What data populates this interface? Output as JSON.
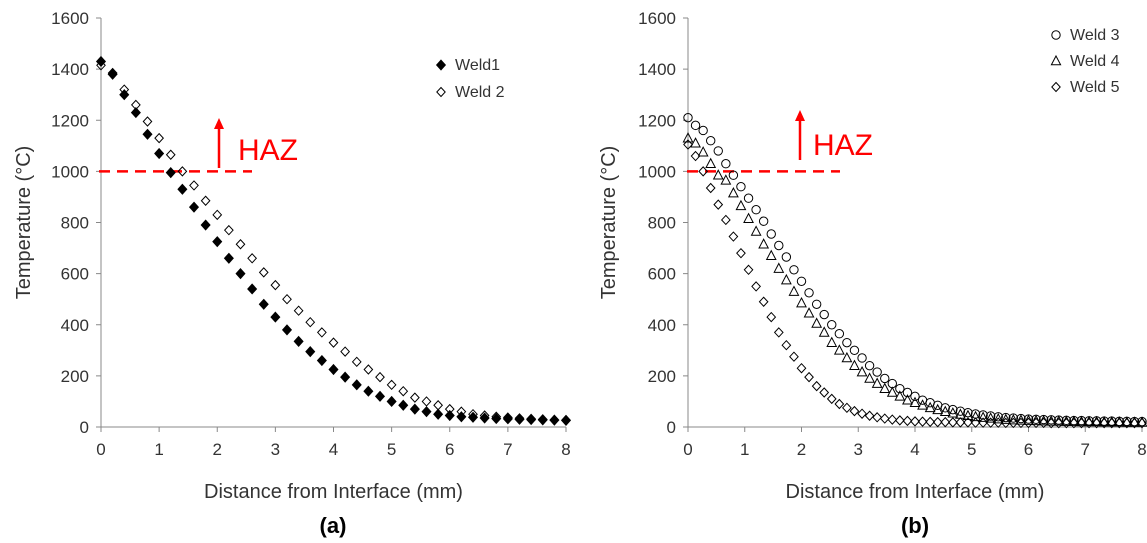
{
  "chart_data": [
    {
      "type": "scatter",
      "panel_label": "(a)",
      "xlabel": "Distance from Interface (mm)",
      "ylabel": "Temperature (°C)",
      "xlim": [
        0,
        8
      ],
      "ylim": [
        0,
        1600
      ],
      "xticks": [
        "0",
        "1",
        "2",
        "3",
        "4",
        "5",
        "6",
        "7",
        "8"
      ],
      "yticks": [
        "0",
        "200",
        "400",
        "600",
        "800",
        "1000",
        "1200",
        "1400",
        "1600"
      ],
      "grid": false,
      "legend_position": "top-right",
      "series": [
        {
          "name": "Weld1",
          "marker": "diamond-filled",
          "x": [
            0,
            0.2,
            0.4,
            0.6,
            0.8,
            1.0,
            1.2,
            1.4,
            1.6,
            1.8,
            2.0,
            2.2,
            2.4,
            2.6,
            2.8,
            3.0,
            3.2,
            3.4,
            3.6,
            3.8,
            4.0,
            4.2,
            4.4,
            4.6,
            4.8,
            5.0,
            5.2,
            5.4,
            5.6,
            5.8,
            6.0,
            6.2,
            6.4,
            6.6,
            6.8,
            7.0,
            7.2,
            7.4,
            7.6,
            7.8,
            8.0
          ],
          "y": [
            1430,
            1380,
            1300,
            1230,
            1145,
            1070,
            995,
            930,
            860,
            790,
            725,
            660,
            600,
            540,
            480,
            430,
            380,
            335,
            295,
            260,
            225,
            195,
            165,
            140,
            120,
            100,
            85,
            70,
            60,
            50,
            45,
            40,
            38,
            35,
            33,
            32,
            30,
            29,
            28,
            27,
            26
          ]
        },
        {
          "name": "Weld 2",
          "marker": "diamond-open",
          "x": [
            0,
            0.2,
            0.4,
            0.6,
            0.8,
            1.0,
            1.2,
            1.4,
            1.6,
            1.8,
            2.0,
            2.2,
            2.4,
            2.6,
            2.8,
            3.0,
            3.2,
            3.4,
            3.6,
            3.8,
            4.0,
            4.2,
            4.4,
            4.6,
            4.8,
            5.0,
            5.2,
            5.4,
            5.6,
            5.8,
            6.0,
            6.2,
            6.4,
            6.6,
            6.8,
            7.0,
            7.2,
            7.4,
            7.6,
            7.8,
            8.0
          ],
          "y": [
            1415,
            1385,
            1320,
            1260,
            1195,
            1130,
            1065,
            1000,
            945,
            885,
            830,
            770,
            715,
            660,
            605,
            555,
            500,
            455,
            410,
            370,
            330,
            295,
            255,
            225,
            195,
            165,
            140,
            115,
            100,
            85,
            70,
            60,
            50,
            45,
            40,
            37,
            34,
            32,
            30,
            28,
            27
          ]
        }
      ],
      "annotation": {
        "text": "HAZ",
        "threshold": 1000,
        "color": "#ff0000"
      }
    },
    {
      "type": "scatter",
      "panel_label": "(b)",
      "xlabel": "Distance from Interface (mm)",
      "ylabel": "Temperature (°C)",
      "xlim": [
        0,
        8
      ],
      "ylim": [
        0,
        1600
      ],
      "xticks": [
        "0",
        "1",
        "2",
        "3",
        "4",
        "5",
        "6",
        "7",
        "8"
      ],
      "yticks": [
        "0",
        "200",
        "400",
        "600",
        "800",
        "1000",
        "1200",
        "1400",
        "1600"
      ],
      "grid": false,
      "legend_position": "top-right",
      "series": [
        {
          "name": "Weld 3",
          "marker": "circle-open",
          "x": [
            0,
            0.133,
            0.267,
            0.4,
            0.533,
            0.667,
            0.8,
            0.933,
            1.067,
            1.2,
            1.333,
            1.467,
            1.6,
            1.733,
            1.867,
            2.0,
            2.133,
            2.267,
            2.4,
            2.533,
            2.667,
            2.8,
            2.933,
            3.067,
            3.2,
            3.333,
            3.467,
            3.6,
            3.733,
            3.867,
            4.0,
            4.133,
            4.267,
            4.4,
            4.533,
            4.667,
            4.8,
            4.933,
            5.067,
            5.2,
            5.333,
            5.467,
            5.6,
            5.733,
            5.867,
            6.0,
            6.133,
            6.267,
            6.4,
            6.533,
            6.667,
            6.8,
            6.933,
            7.067,
            7.2,
            7.333,
            7.467,
            7.6,
            7.733,
            7.867,
            8.0
          ],
          "y": [
            1210,
            1180,
            1160,
            1120,
            1080,
            1030,
            985,
            940,
            895,
            850,
            805,
            755,
            710,
            665,
            615,
            570,
            525,
            480,
            440,
            400,
            365,
            330,
            300,
            270,
            240,
            215,
            190,
            170,
            150,
            135,
            120,
            105,
            95,
            85,
            75,
            68,
            62,
            56,
            51,
            47,
            43,
            40,
            37,
            35,
            33,
            31,
            30,
            29,
            28,
            27,
            26,
            25,
            25,
            24,
            24,
            23,
            23,
            22,
            22,
            21,
            21
          ]
        },
        {
          "name": "Weld 4",
          "marker": "triangle-open",
          "x": [
            0,
            0.133,
            0.267,
            0.4,
            0.533,
            0.667,
            0.8,
            0.933,
            1.067,
            1.2,
            1.333,
            1.467,
            1.6,
            1.733,
            1.867,
            2.0,
            2.133,
            2.267,
            2.4,
            2.533,
            2.667,
            2.8,
            2.933,
            3.067,
            3.2,
            3.333,
            3.467,
            3.6,
            3.733,
            3.867,
            4.0,
            4.133,
            4.267,
            4.4,
            4.533,
            4.667,
            4.8,
            4.933,
            5.067,
            5.2,
            5.333,
            5.467,
            5.6,
            5.733,
            5.867,
            6.0,
            6.133,
            6.267,
            6.4,
            6.533,
            6.667,
            6.8,
            6.933,
            7.067,
            7.2,
            7.333,
            7.467,
            7.6,
            7.733,
            7.867,
            8.0
          ],
          "y": [
            1130,
            1110,
            1075,
            1030,
            985,
            965,
            915,
            865,
            815,
            765,
            715,
            670,
            620,
            575,
            530,
            485,
            445,
            405,
            370,
            330,
            300,
            270,
            240,
            215,
            190,
            170,
            150,
            135,
            120,
            105,
            95,
            85,
            75,
            67,
            60,
            54,
            49,
            44,
            40,
            37,
            34,
            31,
            29,
            27,
            26,
            25,
            24,
            23,
            22,
            22,
            21,
            21,
            20,
            20,
            20,
            19,
            19,
            19,
            18,
            18,
            18
          ]
        },
        {
          "name": "Weld 5",
          "marker": "diamond-open",
          "x": [
            0,
            0.133,
            0.267,
            0.4,
            0.533,
            0.667,
            0.8,
            0.933,
            1.067,
            1.2,
            1.333,
            1.467,
            1.6,
            1.733,
            1.867,
            2.0,
            2.133,
            2.267,
            2.4,
            2.533,
            2.667,
            2.8,
            2.933,
            3.067,
            3.2,
            3.333,
            3.467,
            3.6,
            3.733,
            3.867,
            4.0,
            4.133,
            4.267,
            4.4,
            4.533,
            4.667,
            4.8,
            4.933,
            5.067,
            5.2,
            5.333,
            5.467,
            5.6,
            5.733,
            5.867,
            6.0,
            6.133,
            6.267,
            6.4,
            6.533,
            6.667,
            6.8,
            6.933,
            7.067,
            7.2,
            7.333,
            7.467,
            7.6,
            7.733,
            7.867,
            8.0
          ],
          "y": [
            1105,
            1060,
            1000,
            935,
            870,
            810,
            745,
            680,
            615,
            550,
            490,
            430,
            370,
            320,
            275,
            230,
            195,
            160,
            135,
            110,
            90,
            75,
            62,
            52,
            44,
            38,
            33,
            29,
            26,
            24,
            22,
            21,
            20,
            19,
            19,
            18,
            18,
            18,
            17,
            17,
            17,
            17,
            16,
            16,
            16,
            16,
            16,
            16,
            15,
            15,
            15,
            15,
            15,
            15,
            15,
            15,
            15,
            15,
            15,
            15,
            15
          ]
        }
      ],
      "annotation": {
        "text": "HAZ",
        "threshold": 1000,
        "color": "#ff0000"
      }
    }
  ]
}
